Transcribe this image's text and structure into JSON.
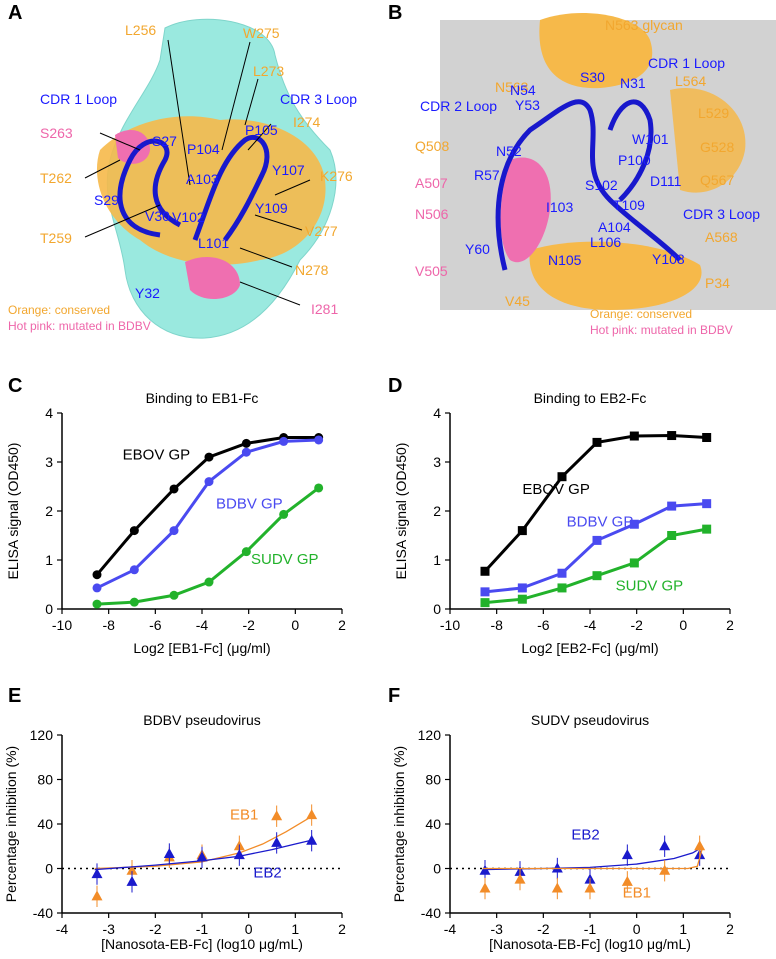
{
  "panels": {
    "A": "A",
    "B": "B",
    "C": "C",
    "D": "D",
    "E": "E",
    "F": "F"
  },
  "structA": {
    "legend_orange": "Orange: conserved",
    "legend_pink": "Hot pink: mutated in BDBV",
    "loops": [
      "CDR 1 Loop",
      "CDR 3 Loop"
    ],
    "orange_labels": [
      "L256",
      "W275",
      "L273",
      "I274",
      "T262",
      "T259",
      "K276",
      "V277",
      "N278"
    ],
    "pink_labels": [
      "S263",
      "I281"
    ],
    "blue_labels": [
      "S27",
      "P105",
      "P104",
      "Y107",
      "A103",
      "S29",
      "V30",
      "V102",
      "Y109",
      "L101",
      "Y32"
    ]
  },
  "structB": {
    "legend_orange": "Orange: conserved",
    "legend_pink": "Hot pink: mutated in BDBV",
    "loops": [
      "CDR 1 Loop",
      "CDR 2 Loop",
      "CDR 3 Loop"
    ],
    "orange_labels": [
      "N563 glycan",
      "N563",
      "L564",
      "L529",
      "Q508",
      "G528",
      "Q567",
      "A568",
      "P34",
      "V45"
    ],
    "pink_labels": [
      "A507",
      "N506",
      "V505"
    ],
    "blue_labels": [
      "N54",
      "S30",
      "N31",
      "Y53",
      "W101",
      "N52",
      "P100",
      "R57",
      "S102",
      "D111",
      "I103",
      "T109",
      "A104",
      "L106",
      "Y60",
      "N105",
      "Y108"
    ]
  },
  "chart_data": [
    {
      "id": "C",
      "type": "line",
      "title": "Binding to EB1-Fc",
      "xlabel": "Log2 [EB1-Fc] (μg/ml)",
      "ylabel": "ELISA signal (OD450)",
      "xlim": [
        -10,
        2
      ],
      "ylim": [
        0,
        4
      ],
      "xticks": [
        -10,
        -8,
        -6,
        -4,
        -2,
        0,
        2
      ],
      "yticks": [
        0,
        1,
        2,
        3,
        4
      ],
      "x": [
        -8.5,
        -6.9,
        -5.2,
        -3.7,
        -2.1,
        -0.5,
        1.0
      ],
      "series": [
        {
          "name": "EBOV GP",
          "color": "#000000",
          "marker": "circle",
          "values": [
            0.7,
            1.6,
            2.45,
            3.1,
            3.38,
            3.5,
            3.5
          ]
        },
        {
          "name": "BDBV GP",
          "color": "#4a4af0",
          "marker": "circle",
          "values": [
            0.43,
            0.8,
            1.6,
            2.6,
            3.2,
            3.42,
            3.45
          ]
        },
        {
          "name": "SUDV GP",
          "color": "#22b22b",
          "marker": "circle",
          "values": [
            0.1,
            0.14,
            0.28,
            0.55,
            1.17,
            1.93,
            2.47
          ]
        }
      ]
    },
    {
      "id": "D",
      "type": "line",
      "title": "Binding to EB2-Fc",
      "xlabel": "Log2 [EB2-Fc] (μg/ml)",
      "ylabel": "ELISA signal (OD450)",
      "xlim": [
        -10,
        2
      ],
      "ylim": [
        0,
        4
      ],
      "xticks": [
        -10,
        -8,
        -6,
        -4,
        -2,
        0,
        2
      ],
      "yticks": [
        0,
        1,
        2,
        3,
        4
      ],
      "x": [
        -8.5,
        -6.9,
        -5.2,
        -3.7,
        -2.1,
        -0.5,
        1.0
      ],
      "series": [
        {
          "name": "EBOV GP",
          "color": "#000000",
          "marker": "square",
          "values": [
            0.77,
            1.6,
            2.7,
            3.4,
            3.53,
            3.54,
            3.5
          ]
        },
        {
          "name": "BDBV GP",
          "color": "#4a4af0",
          "marker": "square",
          "values": [
            0.35,
            0.43,
            0.73,
            1.4,
            1.73,
            2.1,
            2.15
          ]
        },
        {
          "name": "SUDV GP",
          "color": "#22b22b",
          "marker": "square",
          "values": [
            0.13,
            0.2,
            0.43,
            0.68,
            0.94,
            1.5,
            1.63
          ]
        }
      ]
    },
    {
      "id": "E",
      "type": "scatter",
      "title": "BDBV pseudovirus",
      "xlabel": "[Nanosota-EB-Fc] (log10 μg/mL)",
      "ylabel": "Percentage inhibition (%)",
      "xlim": [
        -4,
        2
      ],
      "ylim": [
        -40,
        120
      ],
      "xticks": [
        -4,
        -3,
        -2,
        -1,
        0,
        1,
        2
      ],
      "yticks": [
        -40,
        0,
        40,
        80,
        120
      ],
      "dotted_zero": true,
      "series": [
        {
          "name": "EB1",
          "color": "#f28c28",
          "marker": "triangle",
          "x": [
            -3.25,
            -2.5,
            -1.7,
            -1.0,
            -0.2,
            0.6,
            1.35
          ],
          "values": [
            -25,
            -2,
            10,
            12,
            20,
            47,
            48
          ],
          "fit": [
            [
              -3.3,
              0
            ],
            [
              -2,
              2
            ],
            [
              -1,
              6
            ],
            [
              -0.2,
              14
            ],
            [
              0.3,
              22
            ],
            [
              0.8,
              33
            ],
            [
              1.4,
              48
            ]
          ]
        },
        {
          "name": "EB2",
          "color": "#1a1acc",
          "marker": "triangle",
          "x": [
            -3.25,
            -2.5,
            -1.7,
            -1.0,
            -0.2,
            0.6,
            1.35
          ],
          "values": [
            -5,
            -12,
            13,
            10,
            12,
            23,
            25
          ],
          "fit": [
            [
              -3.3,
              -1
            ],
            [
              -2,
              3
            ],
            [
              -1,
              7
            ],
            [
              -0.2,
              11
            ],
            [
              0.5,
              17
            ],
            [
              1.0,
              22
            ],
            [
              1.4,
              26
            ]
          ]
        }
      ]
    },
    {
      "id": "F",
      "type": "scatter",
      "title": "SUDV pseudovirus",
      "xlabel": "[Nanosota-EB-Fc] (log10 μg/mL)",
      "ylabel": "Percentage inhibition (%)",
      "xlim": [
        -4,
        2
      ],
      "ylim": [
        -40,
        120
      ],
      "xticks": [
        -4,
        -3,
        -2,
        -1,
        0,
        1,
        2
      ],
      "yticks": [
        -40,
        0,
        40,
        80,
        120
      ],
      "dotted_zero": true,
      "series": [
        {
          "name": "EB2",
          "color": "#1a1acc",
          "marker": "triangle",
          "x": [
            -3.25,
            -2.5,
            -1.7,
            -1.0,
            -0.2,
            0.6,
            1.35
          ],
          "values": [
            -2,
            -3,
            0,
            -10,
            12,
            20,
            12
          ],
          "fit": [
            [
              -3.3,
              -1
            ],
            [
              -2,
              0
            ],
            [
              -1,
              1
            ],
            [
              0,
              4
            ],
            [
              0.8,
              9
            ],
            [
              1.2,
              14
            ],
            [
              1.4,
              19
            ]
          ]
        },
        {
          "name": "EB1",
          "color": "#f28c28",
          "marker": "triangle",
          "x": [
            -3.25,
            -2.5,
            -1.7,
            -1.0,
            -0.2,
            0.6,
            1.35
          ],
          "values": [
            -18,
            -10,
            -18,
            -18,
            -12,
            -2,
            20
          ],
          "fit": [
            [
              -3.3,
              0
            ],
            [
              0,
              0
            ],
            [
              1.1,
              0
            ],
            [
              1.3,
              2
            ],
            [
              1.4,
              17
            ]
          ]
        }
      ]
    }
  ],
  "chart_labels": {
    "C": {
      "EBOV": "EBOV GP",
      "BDBV": "BDBV GP",
      "SUDV": "SUDV GP"
    },
    "D": {
      "EBOV": "EBOV GP",
      "BDBV": "BDBV GP",
      "SUDV": "SUDV GP"
    },
    "E": {
      "EB1": "EB1",
      "EB2": "EB2"
    },
    "F": {
      "EB1": "EB1",
      "EB2": "EB2"
    }
  }
}
